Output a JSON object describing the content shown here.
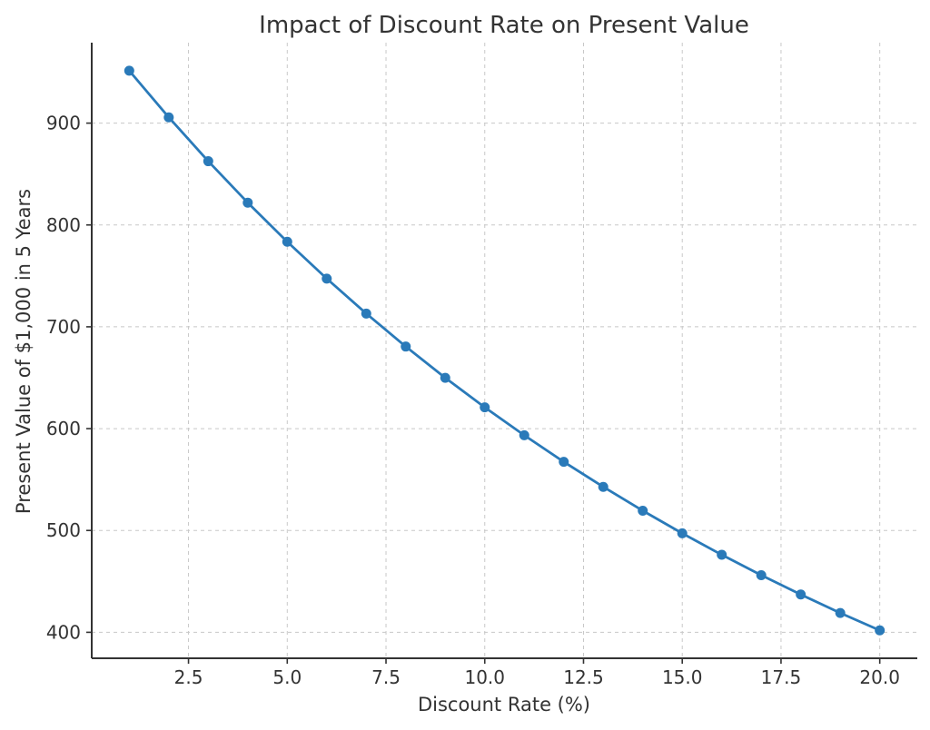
{
  "chart_data": {
    "type": "line",
    "title": "Impact of Discount Rate on Present Value",
    "xlabel": "Discount Rate (%)",
    "ylabel": "Present Value of $1,000 in 5 Years",
    "xlim": [
      0.05,
      20.95
    ],
    "ylim": [
      374.5,
      979
    ],
    "x_ticks": [
      2.5,
      5.0,
      7.5,
      10.0,
      12.5,
      15.0,
      17.5,
      20.0
    ],
    "x_tick_labels": [
      "2.5",
      "5.0",
      "7.5",
      "10.0",
      "12.5",
      "15.0",
      "17.5",
      "20.0"
    ],
    "y_ticks": [
      400,
      500,
      600,
      700,
      800,
      900
    ],
    "y_tick_labels": [
      "400",
      "500",
      "600",
      "700",
      "800",
      "900"
    ],
    "grid": true,
    "color": "#2a7ab9",
    "marker": "circle",
    "series": [
      {
        "x": [
          1,
          2,
          3,
          4,
          5,
          6,
          7,
          8,
          9,
          10,
          11,
          12,
          13,
          14,
          15,
          16,
          17,
          18,
          19,
          20
        ],
        "values": [
          951.5,
          905.7,
          862.6,
          821.9,
          783.5,
          747.3,
          713.0,
          680.6,
          649.9,
          620.9,
          593.5,
          567.4,
          542.8,
          519.4,
          497.2,
          476.1,
          456.1,
          437.1,
          419.0,
          401.9
        ]
      }
    ]
  }
}
